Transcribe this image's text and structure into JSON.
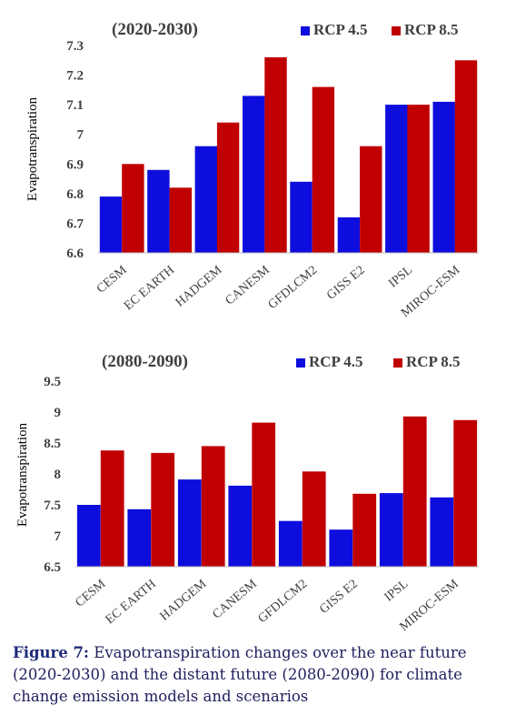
{
  "chart_data": [
    {
      "type": "bar",
      "title": "(2020-2030)",
      "ylabel": "Evapotranspiration",
      "xlabel": "",
      "ylim": [
        6.6,
        7.3
      ],
      "yticks": [
        "6.6",
        "6.7",
        "6.8",
        "6.9",
        "7",
        "7.1",
        "7.2",
        "7.3"
      ],
      "categories": [
        "CESM",
        "EC EARTH",
        "HADGEM",
        "CANESM",
        "GFDLCM2",
        "GISS E2",
        "IPSL",
        "MIROC-ESM"
      ],
      "series": [
        {
          "name": "RCP 4.5",
          "color": "#0d0ddd",
          "values": [
            6.79,
            6.88,
            6.96,
            7.13,
            6.84,
            6.72,
            7.1,
            7.11
          ]
        },
        {
          "name": "RCP 8.5",
          "color": "#c00000",
          "values": [
            6.9,
            6.82,
            7.04,
            7.26,
            7.16,
            6.96,
            7.1,
            7.25
          ]
        }
      ],
      "legend": "top-right",
      "grid": false
    },
    {
      "type": "bar",
      "title": "(2080-2090)",
      "ylabel": "Evapotranspiration",
      "xlabel": "",
      "ylim": [
        6.5,
        9.5
      ],
      "yticks": [
        "6.5",
        "7",
        "7.5",
        "8",
        "8.5",
        "9",
        "9.5"
      ],
      "categories": [
        "CESM",
        "EC EARTH",
        "HADGEM",
        "CANESM",
        "GFDLCM2",
        "GISS E2",
        "IPSL",
        "MIROC-ESM"
      ],
      "series": [
        {
          "name": "RCP 4.5",
          "color": "#0d0ddd",
          "values": [
            7.5,
            7.43,
            7.91,
            7.81,
            7.24,
            7.1,
            7.69,
            7.62
          ]
        },
        {
          "name": "RCP 8.5",
          "color": "#c00000",
          "values": [
            8.38,
            8.34,
            8.45,
            8.83,
            8.04,
            7.68,
            8.93,
            8.87
          ]
        }
      ],
      "legend": "top-right",
      "grid": false
    }
  ],
  "caption": {
    "label": "Figure 7:",
    "text": " Evapotranspiration changes over the near future (2020-2030) and the distant future (2080-2090) for climate change emission models and scenarios"
  }
}
